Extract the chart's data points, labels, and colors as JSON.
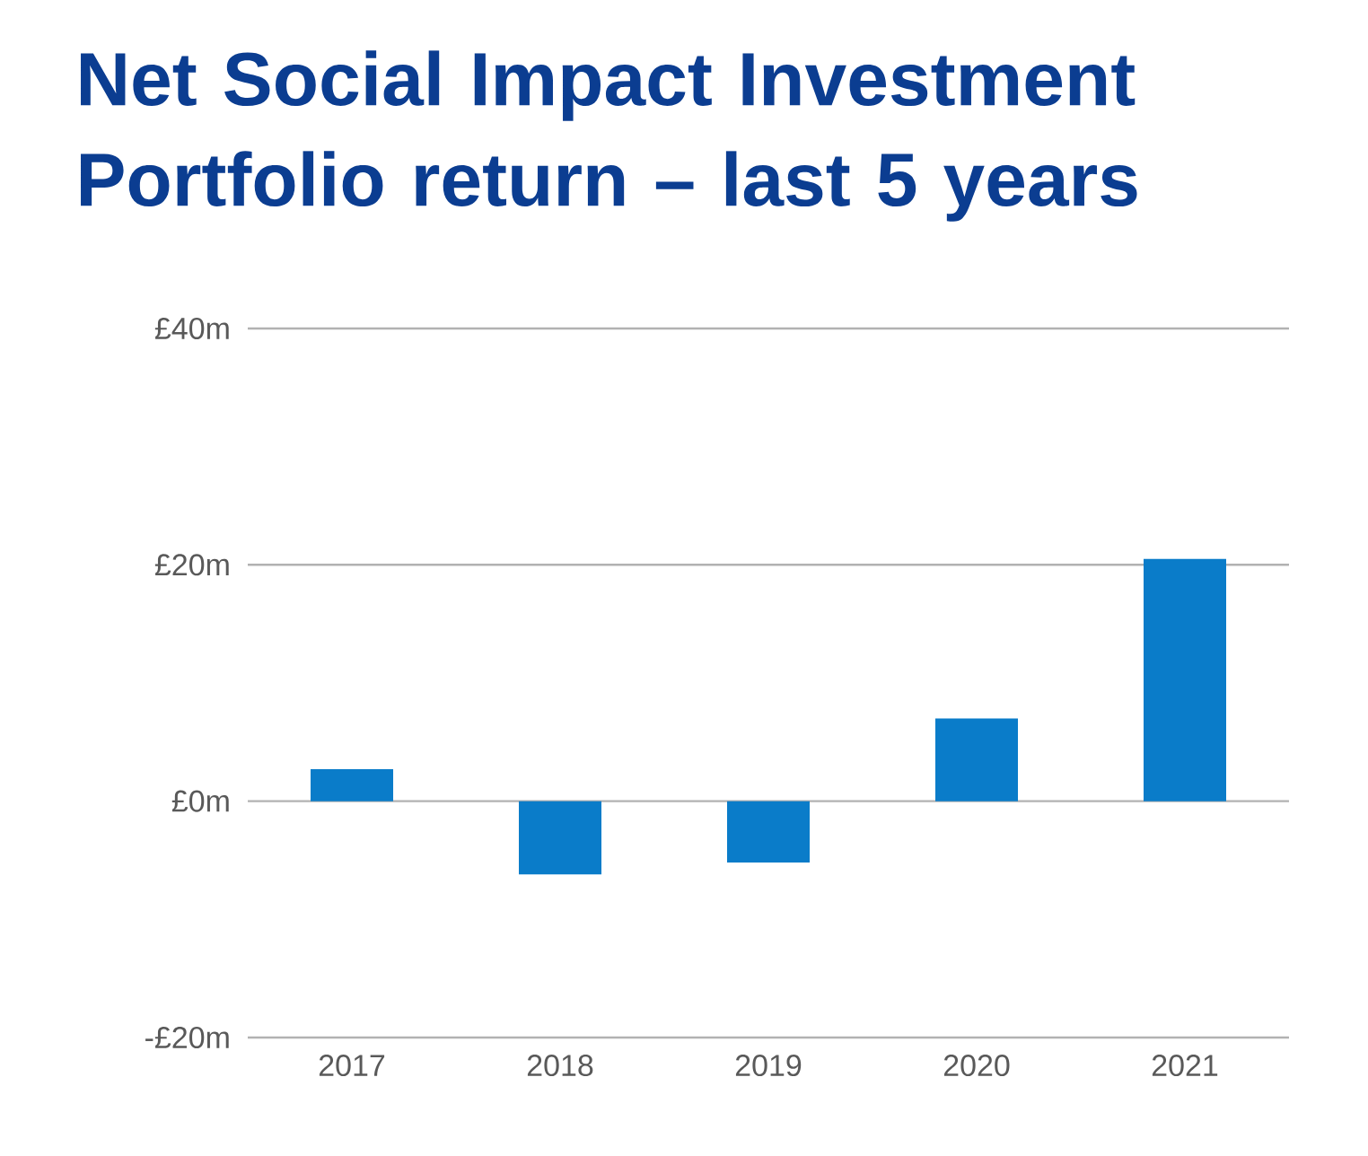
{
  "chart_data": {
    "type": "bar",
    "title": "Net Social Impact Investment Portfolio return – last 5 years",
    "categories": [
      "2017",
      "2018",
      "2019",
      "2020",
      "2021"
    ],
    "values": [
      2.7,
      -6.2,
      -5.2,
      7.0,
      20.5
    ],
    "color": "#0a7cc9",
    "ylim": [
      -20,
      40
    ],
    "yticks": [
      {
        "value": -20,
        "label": "-£20m"
      },
      {
        "value": 0,
        "label": "£0m"
      },
      {
        "value": 20,
        "label": "£20m"
      },
      {
        "value": 40,
        "label": "£40m"
      }
    ],
    "grid": "y"
  }
}
